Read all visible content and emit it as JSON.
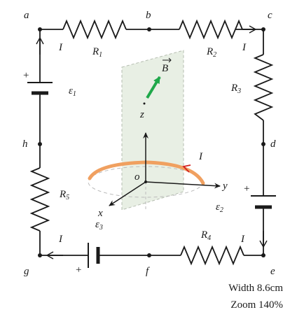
{
  "nodes": {
    "a": "a",
    "b": "b",
    "c": "c",
    "d": "d",
    "e": "e",
    "f": "f",
    "g": "g",
    "h": "h"
  },
  "resistors": {
    "r1": "R",
    "r2": "R",
    "r3": "R",
    "r4": "R",
    "r5": "R",
    "subs": [
      "1",
      "2",
      "3",
      "4",
      "5"
    ]
  },
  "currents": {
    "symbol": "I"
  },
  "emfs": {
    "symbol": "ε",
    "subs": [
      "1",
      "2",
      "3"
    ]
  },
  "polarity": {
    "plus": "+"
  },
  "axes": {
    "x": "x",
    "y": "y",
    "z": "z",
    "origin": "o"
  },
  "field": {
    "symbol": "B"
  },
  "colors": {
    "wire": "#1a1a1a",
    "loop": "#f0a060",
    "field_arrow": "#1fa84a",
    "loop_arrow": "#d42020",
    "plane": "#e8efe4"
  },
  "info": {
    "width": "Width 8.6cm",
    "zoom": "Zoom 140%"
  }
}
